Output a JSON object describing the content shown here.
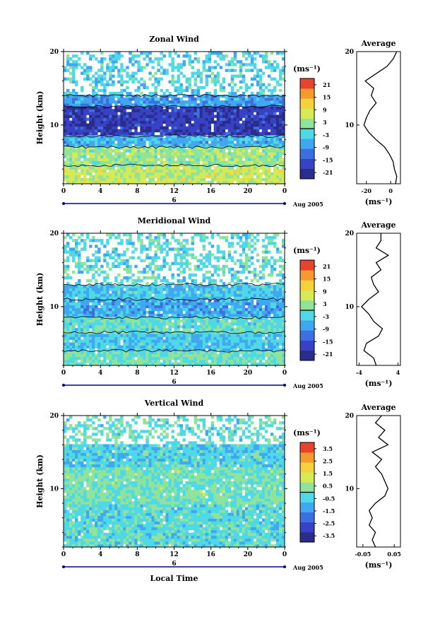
{
  "chart_data": [
    {
      "type": "heatmap",
      "title": "Zonal Wind",
      "ylabel": "Height (km)",
      "xlabel": "",
      "xlim": [
        0,
        24
      ],
      "ylim": [
        2,
        20
      ],
      "x_ticks": [
        "0",
        "4",
        "8",
        "12",
        "16",
        "20",
        "0"
      ],
      "y_ticks": [
        "20",
        "10"
      ],
      "date_marker": "6",
      "date_label": "Aug 2005",
      "colorbar": {
        "unit": "(ms⁻¹)",
        "ticks": [
          "21",
          "15",
          "9",
          "3",
          "-3",
          "-9",
          "-15",
          "-21"
        ],
        "range": [
          -24,
          24
        ]
      },
      "bands": [
        {
          "from": 2,
          "to": 4.5,
          "value": 6
        },
        {
          "from": 4.5,
          "to": 7,
          "value": 3
        },
        {
          "from": 7,
          "to": 8.5,
          "value": -6
        },
        {
          "from": 8.5,
          "to": 12.5,
          "value": -18
        },
        {
          "from": 12.5,
          "to": 14,
          "value": -8
        },
        {
          "from": 14,
          "to": 20,
          "value": -3,
          "sparse": true
        }
      ],
      "avg_title": "Average",
      "avg_xticks": [
        "-20",
        "0"
      ],
      "avg_xlim": [
        -28,
        8
      ],
      "avg_xunit": "(ms⁻¹)",
      "avg_profile": [
        [
          2,
          4
        ],
        [
          3,
          5
        ],
        [
          4,
          3
        ],
        [
          5,
          2
        ],
        [
          6,
          -1
        ],
        [
          7,
          -5
        ],
        [
          8,
          -12
        ],
        [
          9,
          -18
        ],
        [
          10,
          -22
        ],
        [
          11,
          -20
        ],
        [
          12,
          -17
        ],
        [
          13,
          -12
        ],
        [
          14,
          -16
        ],
        [
          15,
          -14
        ],
        [
          16,
          -21
        ],
        [
          17,
          -12
        ],
        [
          18,
          -3
        ],
        [
          19,
          2
        ],
        [
          20,
          5
        ]
      ]
    },
    {
      "type": "heatmap",
      "title": "Meridional Wind",
      "ylabel": "Height (km)",
      "xlabel": "",
      "xlim": [
        0,
        24
      ],
      "ylim": [
        2,
        20
      ],
      "x_ticks": [
        "0",
        "4",
        "8",
        "12",
        "16",
        "20",
        "0"
      ],
      "y_ticks": [
        "20",
        "10"
      ],
      "date_marker": "6",
      "date_label": "Aug 2005",
      "colorbar": {
        "unit": "(ms⁻¹)",
        "ticks": [
          "21",
          "15",
          "9",
          "3",
          "-3",
          "-9",
          "-15",
          "-21"
        ],
        "range": [
          -24,
          24
        ]
      },
      "bands": [
        {
          "from": 2,
          "to": 4,
          "value": 0
        },
        {
          "from": 4,
          "to": 6.5,
          "value": -4
        },
        {
          "from": 6.5,
          "to": 8.5,
          "value": -1
        },
        {
          "from": 8.5,
          "to": 11,
          "value": -7
        },
        {
          "from": 11,
          "to": 13,
          "value": -4
        },
        {
          "from": 13,
          "to": 20,
          "value": -2,
          "sparse": true
        }
      ],
      "avg_title": "Average",
      "avg_xticks": [
        "-4",
        "4"
      ],
      "avg_xlim": [
        -4.5,
        4.5
      ],
      "avg_xunit": "(ms⁻¹)",
      "avg_profile": [
        [
          2,
          -0.5
        ],
        [
          3,
          -1
        ],
        [
          4,
          -3
        ],
        [
          5,
          -2.5
        ],
        [
          6,
          0
        ],
        [
          7,
          0.8
        ],
        [
          8,
          -1
        ],
        [
          9,
          -2
        ],
        [
          10,
          -3.5
        ],
        [
          11,
          -2
        ],
        [
          12,
          0
        ],
        [
          13,
          -1
        ],
        [
          14,
          -1.5
        ],
        [
          15,
          0.5
        ],
        [
          16,
          -0.5
        ],
        [
          17,
          2
        ],
        [
          18,
          -0.5
        ],
        [
          19,
          0.5
        ],
        [
          20,
          0.5
        ]
      ]
    },
    {
      "type": "heatmap",
      "title": "Vertical Wind",
      "ylabel": "Height (km)",
      "xlabel": "Local Time",
      "xlim": [
        0,
        24
      ],
      "ylim": [
        2,
        20
      ],
      "x_ticks": [
        "0",
        "4",
        "8",
        "12",
        "16",
        "20",
        "0"
      ],
      "y_ticks": [
        "20",
        "10"
      ],
      "date_marker": "6",
      "date_label": "Aug 2005",
      "colorbar": {
        "unit": "(ms⁻¹)",
        "ticks": [
          "3.5",
          "2.5",
          "1.5",
          "0.5",
          "-0.5",
          "-1.5",
          "-2.5",
          "-3.5"
        ],
        "range": [
          -4,
          4
        ]
      },
      "bands": [
        {
          "from": 2,
          "to": 8,
          "value": -0.3
        },
        {
          "from": 8,
          "to": 13,
          "value": 0.1
        },
        {
          "from": 13,
          "to": 16,
          "value": -0.5
        },
        {
          "from": 16,
          "to": 20,
          "value": -0.2,
          "sparse": true
        }
      ],
      "avg_title": "Average",
      "avg_xticks": [
        "-0.05",
        "0.05"
      ],
      "avg_xlim": [
        -0.07,
        0.07
      ],
      "avg_xunit": "(ms⁻¹)",
      "avg_profile": [
        [
          2,
          -0.01
        ],
        [
          3,
          -0.02
        ],
        [
          4,
          -0.01
        ],
        [
          5,
          -0.03
        ],
        [
          6,
          -0.02
        ],
        [
          7,
          -0.03
        ],
        [
          8,
          -0.01
        ],
        [
          9,
          0.02
        ],
        [
          10,
          0.03
        ],
        [
          11,
          0.02
        ],
        [
          12,
          0.01
        ],
        [
          13,
          -0.01
        ],
        [
          14,
          0.01
        ],
        [
          15,
          -0.02
        ],
        [
          16,
          0.03
        ],
        [
          17,
          0.0
        ],
        [
          18,
          0.02
        ],
        [
          19,
          -0.01
        ],
        [
          20,
          0.01
        ]
      ]
    }
  ]
}
